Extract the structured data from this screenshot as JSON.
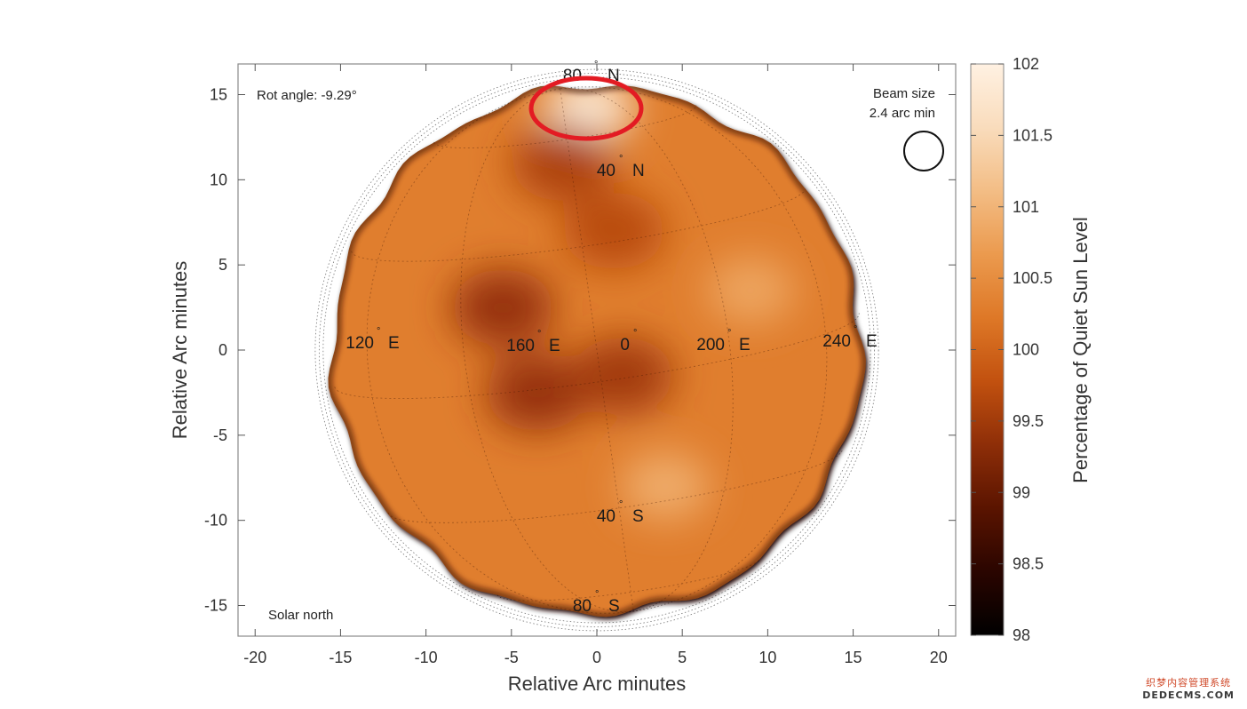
{
  "chart_data": {
    "type": "heatmap",
    "title": "",
    "xlabel": "Relative Arc minutes",
    "ylabel": "Relative Arc minutes",
    "xlim": [
      -21,
      21
    ],
    "ylim": [
      -16.8,
      16.8
    ],
    "xticks": [
      -20,
      -15,
      -10,
      -5,
      0,
      5,
      10,
      15,
      20
    ],
    "yticks": [
      15,
      10,
      5,
      0,
      -5,
      -10,
      -15
    ],
    "grid": false,
    "colorbar": {
      "label": "Percentage of Quiet Sun Level",
      "min": 98,
      "max": 102,
      "ticks": [
        "102",
        "101.5",
        "101",
        "100.5",
        "100",
        "99.5",
        "99",
        "98.5",
        "98"
      ],
      "colors": [
        "#000000",
        "#2a0500",
        "#5a1400",
        "#8e2e08",
        "#c2510f",
        "#de7827",
        "#eb9a4e",
        "#f3bd85",
        "#f9dcbc",
        "#fff1e2"
      ]
    },
    "disk": {
      "center": [
        0,
        0
      ],
      "radius": 15.5,
      "value_mean": 100.3
    },
    "features": [
      {
        "label": "bright region near north pole",
        "x": -0.5,
        "y": 14.2,
        "value": 101.8,
        "highlighted": true
      },
      {
        "label": "dark patch",
        "x": -5.5,
        "y": 2.5,
        "value": 99.4
      },
      {
        "label": "dark patch",
        "x": -3.5,
        "y": -2.5,
        "value": 99.4
      },
      {
        "label": "dark patch",
        "x": 1.5,
        "y": -1.5,
        "value": 99.5
      },
      {
        "label": "dark patch",
        "x": -2.0,
        "y": 11.0,
        "value": 99.6
      },
      {
        "label": "dark patch",
        "x": 1.0,
        "y": 7.0,
        "value": 99.7
      },
      {
        "label": "bright patch",
        "x": 4.0,
        "y": -8.0,
        "value": 100.9
      },
      {
        "label": "bright patch",
        "x": 9.0,
        "y": 3.5,
        "value": 100.8
      }
    ],
    "grid_labels": {
      "north80": "80",
      "north80_suffix": "N",
      "north40": "40",
      "north40_suffix": "N",
      "south40": "40",
      "south40_suffix": "S",
      "south80": "80",
      "south80_suffix": "S",
      "e120": "120",
      "e120_suffix": "E",
      "e160": "160",
      "e160_suffix": "E",
      "zero": "0",
      "e200": "200",
      "e200_suffix": "E",
      "e240": "240",
      "e240_suffix": "E"
    },
    "annotations": {
      "rot_angle": "Rot angle: -9.29°",
      "beam_line1": "Beam size",
      "beam_line2": "2.4 arc min",
      "solar_north": "Solar north"
    },
    "highlight_color": "#e31b23"
  },
  "watermark": {
    "line1": "织梦内容管理系统",
    "line2": "DEDECMS.COM"
  }
}
